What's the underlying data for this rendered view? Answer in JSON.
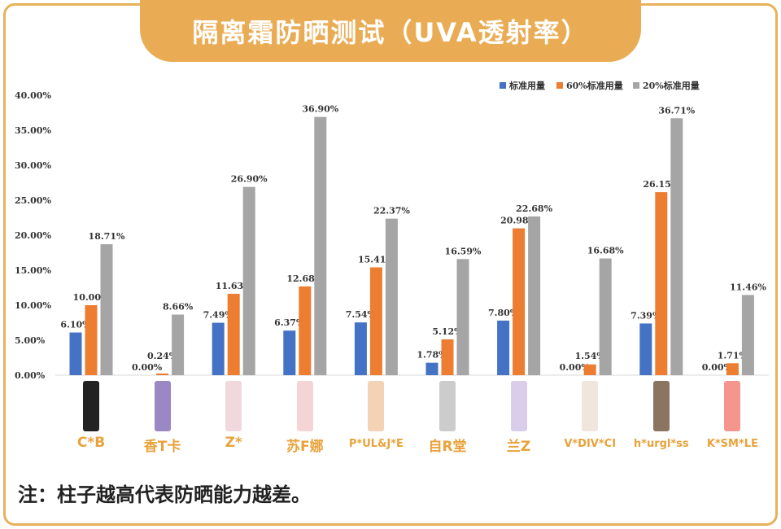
{
  "title": "隔离霜防晒测试（UVA透射率）",
  "note": "注：柱子越高代表防晒能力越差。",
  "chart_data": {
    "type": "bar",
    "title": "隔离霜防晒测试（UVA透射率）",
    "categories": [
      "C*B",
      "香T卡",
      "Z*",
      "苏F娜",
      "P*UL&J*E",
      "自R堂",
      "兰Z",
      "V*DIV*CI",
      "h*urgl*ss",
      "K*SM*LE"
    ],
    "series": [
      {
        "name": "标准用量",
        "color": "#4472c4",
        "values": [
          6.1,
          0.0,
          7.49,
          6.37,
          7.54,
          1.78,
          7.8,
          0.0,
          7.39,
          0.0
        ],
        "labels": [
          "6.10%",
          "0.00%",
          "7.49%",
          "6.37%",
          "7.54%",
          "1.78%",
          "7.80%",
          "0.00%",
          "7.39%",
          "0.00%"
        ]
      },
      {
        "name": "60%标准用量",
        "color": "#ed7d31",
        "values": [
          10.0,
          0.24,
          11.63,
          12.68,
          15.41,
          5.12,
          20.98,
          1.54,
          26.15,
          1.71
        ],
        "labels": [
          "10.00%",
          "0.24%",
          "11.63%",
          "12.68%",
          "15.41%",
          "5.12%",
          "20.98%",
          "1.54%",
          "26.15%",
          "1.71%"
        ]
      },
      {
        "name": "20%标准用量",
        "color": "#a5a5a5",
        "values": [
          18.71,
          8.66,
          26.9,
          36.9,
          22.37,
          16.59,
          22.68,
          16.68,
          36.71,
          11.46
        ],
        "labels": [
          "18.71%",
          "8.66%",
          "26.90%",
          "36.90%",
          "22.37%",
          "16.59%",
          "22.68%",
          "16.68%",
          "36.71%",
          "11.46%"
        ]
      }
    ],
    "ylim": [
      0,
      40
    ],
    "yticks": [
      "0.00%",
      "5.00%",
      "10.00%",
      "15.00%",
      "20.00%",
      "25.00%",
      "30.00%",
      "35.00%",
      "40.00%"
    ],
    "grid": false,
    "legend": "top-right"
  },
  "products": [
    {
      "color": "#222"
    },
    {
      "color": "#9a88c4"
    },
    {
      "color": "#f1d8dd"
    },
    {
      "color": "#f5d4d6"
    },
    {
      "color": "#f3d2b5"
    },
    {
      "color": "#ccc"
    },
    {
      "color": "#d9cdea"
    },
    {
      "color": "#f1e6dc"
    },
    {
      "color": "#8a7560"
    },
    {
      "color": "#f4968e"
    }
  ]
}
